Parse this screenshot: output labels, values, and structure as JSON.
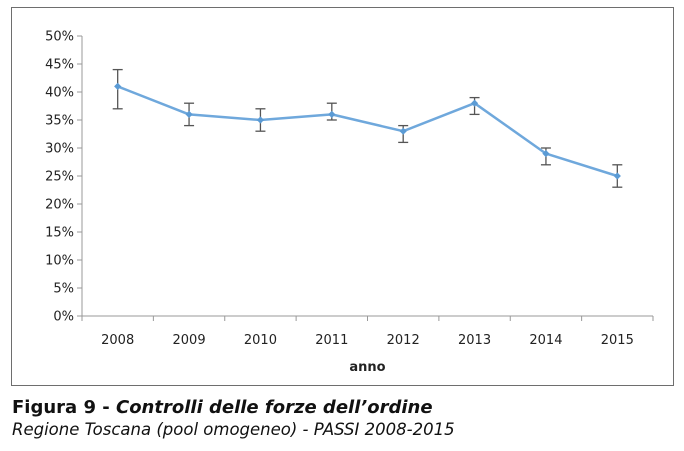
{
  "chart_data": {
    "type": "line",
    "categories": [
      "2008",
      "2009",
      "2010",
      "2011",
      "2012",
      "2013",
      "2014",
      "2015"
    ],
    "series": [
      {
        "name": "Controlli delle forze dell'ordine",
        "values": [
          41,
          36,
          35,
          36,
          33,
          38,
          29,
          25
        ],
        "error_low": [
          37,
          34,
          33,
          35,
          31,
          36,
          27,
          23
        ],
        "error_high": [
          44,
          38,
          37,
          38,
          34,
          39,
          30,
          27
        ],
        "color": "#6fa8dc"
      }
    ],
    "y_ticks": [
      "0%",
      "5%",
      "10%",
      "15%",
      "20%",
      "25%",
      "30%",
      "35%",
      "40%",
      "45%",
      "50%"
    ],
    "ylim": [
      0,
      50
    ],
    "xlabel": "anno",
    "ylabel": "",
    "title": "",
    "legend": "none"
  },
  "caption": {
    "figure_label": "Figura 9 - ",
    "title": "Controlli delle forze dell’ordine",
    "subtitle": "Regione Toscana (pool omogeneo) - PASSI 2008-2015"
  },
  "colors": {
    "line": "#6fa8dc",
    "marker": "#5b9bd5",
    "error_bar": "#555555",
    "axis": "#999999"
  }
}
